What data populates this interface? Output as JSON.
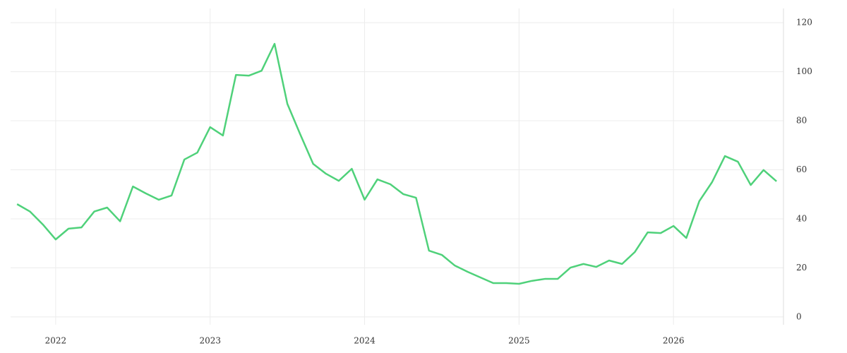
{
  "chart_data": {
    "type": "line",
    "x": [
      2021.75,
      2021.833,
      2021.917,
      2022,
      2022.083,
      2022.167,
      2022.25,
      2022.333,
      2022.417,
      2022.5,
      2022.583,
      2022.667,
      2022.75,
      2022.833,
      2022.917,
      2023,
      2023.083,
      2023.167,
      2023.25,
      2023.333,
      2023.417,
      2023.5,
      2023.583,
      2023.667,
      2023.75,
      2023.833,
      2023.917,
      2024,
      2024.083,
      2024.167,
      2024.25,
      2024.333,
      2024.417,
      2024.5,
      2024.583,
      2024.667,
      2024.75,
      2024.833,
      2024.917,
      2025,
      2025.083,
      2025.167,
      2025.25,
      2025.333,
      2025.417,
      2025.5,
      2025.583,
      2025.667,
      2025.75,
      2025.833,
      2025.917,
      2026,
      2026.083,
      2026.167,
      2026.25,
      2026.333,
      2026.417,
      2026.5,
      2026.583,
      2026.667
    ],
    "values": [
      46,
      43,
      37.7,
      31.6,
      36,
      36.5,
      43,
      44.6,
      39,
      53.2,
      50.4,
      47.8,
      49.5,
      64.2,
      67,
      77.4,
      74,
      98.7,
      98.4,
      100.4,
      111.4,
      86.9,
      74.5,
      62.4,
      58.4,
      55.5,
      60.4,
      47.8,
      56.1,
      54.1,
      50.1,
      48.6,
      27,
      25.3,
      21,
      18.4,
      16.1,
      13.8,
      13.8,
      13.5,
      14.7,
      15.5,
      15.5,
      20.1,
      21.6,
      20.4,
      23,
      21.6,
      26.5,
      34.5,
      34.2,
      37.1,
      32.2,
      47.2,
      55,
      65.6,
      63.3,
      53.8,
      59.9,
      55.3
    ],
    "color": "#4fd17a",
    "xlim": [
      2021.708,
      2026.712
    ],
    "xticks": [
      2022,
      2023,
      2024,
      2025,
      2026
    ],
    "ylim": [
      -3.2,
      125.8
    ],
    "yticks": [
      0,
      20,
      40,
      60,
      80,
      100,
      120
    ],
    "grid": true
  }
}
